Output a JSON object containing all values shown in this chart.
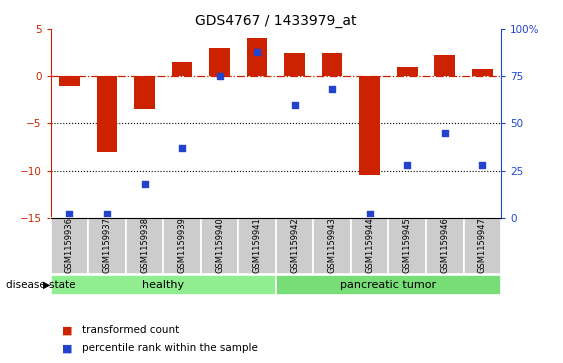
{
  "title": "GDS4767 / 1433979_at",
  "samples": [
    "GSM1159936",
    "GSM1159937",
    "GSM1159938",
    "GSM1159939",
    "GSM1159940",
    "GSM1159941",
    "GSM1159942",
    "GSM1159943",
    "GSM1159944",
    "GSM1159945",
    "GSM1159946",
    "GSM1159947"
  ],
  "red_bars": [
    -1.0,
    -8.0,
    -3.5,
    1.5,
    3.0,
    4.0,
    2.5,
    2.5,
    -10.5,
    1.0,
    2.2,
    0.8
  ],
  "blue_pct": [
    2,
    2,
    18,
    37,
    75,
    88,
    60,
    68,
    2,
    28,
    45,
    28
  ],
  "ylim_left": [
    -15,
    5
  ],
  "ylim_right": [
    0,
    100
  ],
  "yticks_left": [
    -15,
    -10,
    -5,
    0,
    5
  ],
  "yticks_right": [
    0,
    25,
    50,
    75,
    100
  ],
  "ytick_labels_right": [
    "0",
    "25",
    "50",
    "75",
    "100%"
  ],
  "groups": [
    {
      "label": "healthy",
      "start": 0,
      "end": 6,
      "color": "#90EE90"
    },
    {
      "label": "pancreatic tumor",
      "start": 6,
      "end": 12,
      "color": "#77DD77"
    }
  ],
  "bar_color": "#CC2200",
  "square_color": "#2244CC",
  "zero_line_color": "#CC2200",
  "bg_color": "#FFFFFF",
  "label_box_color": "#CCCCCC",
  "disease_state_label": "disease state",
  "legend_red_label": "transformed count",
  "legend_blue_label": "percentile rank within the sample",
  "fig_width": 5.63,
  "fig_height": 3.63,
  "dpi": 100
}
